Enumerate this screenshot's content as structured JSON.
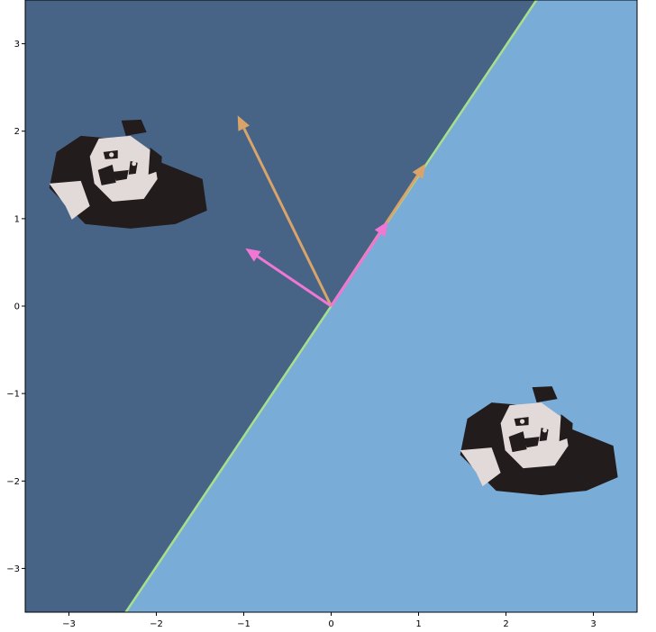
{
  "chart_data": {
    "type": "scatter",
    "title": "",
    "xlabel": "",
    "ylabel": "",
    "xlim": [
      -3.5,
      3.5
    ],
    "ylim": [
      -3.5,
      3.5
    ],
    "grid": false,
    "x_ticks": [
      -3,
      -2,
      -1,
      0,
      1,
      2,
      3
    ],
    "y_ticks": [
      -3,
      -2,
      -1,
      0,
      1,
      2,
      3
    ],
    "x_tick_labels": [
      "−3",
      "−2",
      "−1",
      "0",
      "1",
      "2",
      "3"
    ],
    "y_tick_labels": [
      "−3",
      "−2",
      "−1",
      "0",
      "1",
      "2",
      "3"
    ],
    "decision_boundary": {
      "through": [
        [
          -2.35,
          -3.5
        ],
        [
          2.35,
          3.5
        ]
      ],
      "color": "#a6e08c"
    },
    "regions": [
      {
        "side": "upper-left",
        "color": "#476487"
      },
      {
        "side": "lower-right",
        "color": "#79acd6"
      }
    ],
    "vectors": [
      {
        "from": [
          0,
          0
        ],
        "to": [
          -1.07,
          2.18
        ],
        "color": "#d8a469"
      },
      {
        "from": [
          0,
          0
        ],
        "to": [
          1.08,
          1.63
        ],
        "color": "#d8a469"
      },
      {
        "from": [
          0,
          0
        ],
        "to": [
          -0.98,
          0.66
        ],
        "color": "#f077d3"
      },
      {
        "from": [
          0,
          0
        ],
        "to": [
          0.65,
          0.97
        ],
        "color": "#f077d3"
      }
    ],
    "images": [
      {
        "icon": "panda-icon",
        "center": [
          -2.4,
          1.35
        ]
      },
      {
        "icon": "panda-icon",
        "center": [
          2.3,
          -1.7
        ]
      }
    ]
  }
}
